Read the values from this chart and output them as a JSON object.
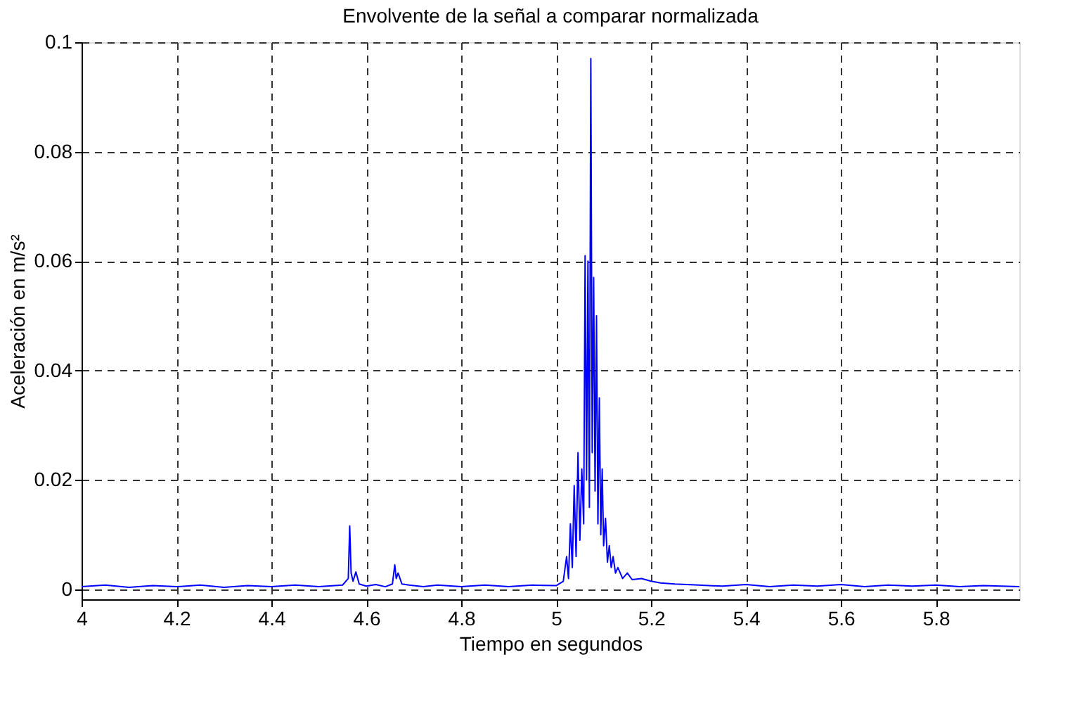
{
  "chart_data": {
    "type": "line",
    "title": "Envolvente de la señal a comparar normalizada",
    "xlabel": "Tiempo en segundos",
    "ylabel": "Aceleración en m/s²",
    "xlim": [
      4,
      5.976
    ],
    "ylim": [
      -0.0018,
      0.1
    ],
    "xticks": [
      4,
      4.2,
      4.4,
      4.6,
      4.8,
      5,
      5.2,
      5.4,
      5.6,
      5.8
    ],
    "yticks": [
      0,
      0.02,
      0.04,
      0.06,
      0.08,
      0.1
    ],
    "grid": true,
    "line_style": "solid",
    "marker": "none",
    "series": [
      {
        "color": "#0000ff",
        "x": [
          4,
          4.05,
          4.1,
          4.15,
          4.2,
          4.25,
          4.3,
          4.35,
          4.4,
          4.45,
          4.5,
          4.55,
          4.562,
          4.565,
          4.568,
          4.572,
          4.578,
          4.585,
          4.6,
          4.62,
          4.64,
          4.655,
          4.66,
          4.663,
          4.667,
          4.675,
          4.69,
          4.72,
          4.75,
          4.8,
          4.85,
          4.9,
          4.95,
          5.0,
          5.015,
          5.022,
          5.026,
          5.03,
          5.034,
          5.038,
          5.042,
          5.046,
          5.05,
          5.054,
          5.058,
          5.061,
          5.064,
          5.067,
          5.07,
          5.073,
          5.076,
          5.079,
          5.082,
          5.085,
          5.088,
          5.091,
          5.094,
          5.097,
          5.1,
          5.104,
          5.108,
          5.112,
          5.116,
          5.12,
          5.125,
          5.13,
          5.14,
          5.15,
          5.16,
          5.18,
          5.2,
          5.22,
          5.25,
          5.3,
          5.35,
          5.4,
          5.45,
          5.5,
          5.55,
          5.6,
          5.65,
          5.7,
          5.75,
          5.8,
          5.85,
          5.9,
          5.976
        ],
        "values": [
          0.0005,
          0.0008,
          0.0004,
          0.0007,
          0.0005,
          0.0008,
          0.0004,
          0.0007,
          0.0005,
          0.0008,
          0.0005,
          0.0008,
          0.002,
          0.0116,
          0.003,
          0.0015,
          0.0032,
          0.001,
          0.0006,
          0.0009,
          0.0005,
          0.001,
          0.0045,
          0.002,
          0.003,
          0.001,
          0.0008,
          0.0005,
          0.0008,
          0.0005,
          0.0008,
          0.0005,
          0.0008,
          0.0007,
          0.0015,
          0.006,
          0.002,
          0.012,
          0.004,
          0.019,
          0.006,
          0.025,
          0.009,
          0.022,
          0.012,
          0.061,
          0.02,
          0.06,
          0.015,
          0.097,
          0.025,
          0.057,
          0.018,
          0.05,
          0.012,
          0.035,
          0.01,
          0.022,
          0.008,
          0.013,
          0.005,
          0.008,
          0.004,
          0.006,
          0.003,
          0.004,
          0.002,
          0.003,
          0.0018,
          0.002,
          0.0015,
          0.0012,
          0.001,
          0.0008,
          0.0006,
          0.0009,
          0.0005,
          0.0008,
          0.0006,
          0.0009,
          0.0005,
          0.0008,
          0.0006,
          0.0008,
          0.0005,
          0.0007,
          0.0005
        ]
      }
    ]
  }
}
